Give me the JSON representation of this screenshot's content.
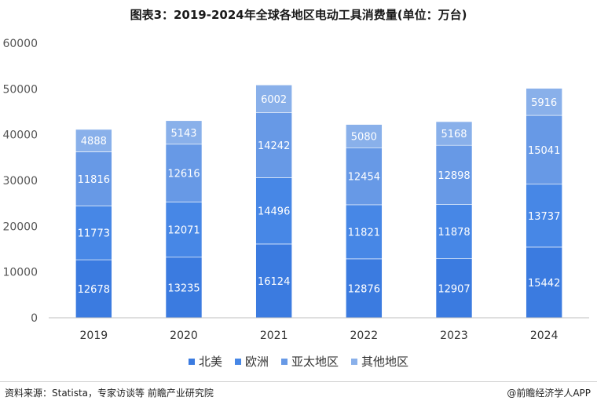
{
  "title": "图表3：2019-2024年全球各地区电动工具消费量(单位：万台)",
  "footer": {
    "source": "资料来源：Statista，专家访谈等 前瞻产业研究院",
    "brand": "@前瞻经济学人APP"
  },
  "colors": {
    "north_america": "#3b7be0",
    "europe": "#4787e6",
    "asia_pacific": "#6799e6",
    "other": "#89b0ea",
    "axis": "#bfbfbf"
  },
  "chart_data": {
    "type": "bar",
    "stacked": true,
    "categories": [
      "2019",
      "2020",
      "2021",
      "2022",
      "2023",
      "2024"
    ],
    "series": [
      {
        "name": "北美",
        "values": [
          12678,
          13235,
          16124,
          12876,
          12907,
          15442
        ]
      },
      {
        "name": "欧洲",
        "values": [
          11773,
          12071,
          14496,
          11821,
          11878,
          13737
        ]
      },
      {
        "name": "亚太地区",
        "values": [
          11816,
          12616,
          14242,
          12454,
          12898,
          15041
        ]
      },
      {
        "name": "其他地区",
        "values": [
          4888,
          5143,
          6002,
          5080,
          5168,
          5916
        ]
      }
    ],
    "y_ticks": [
      "0",
      "10000",
      "20000",
      "30000",
      "40000",
      "50000",
      "60000"
    ],
    "ylim": [
      0,
      60000
    ],
    "grid": false,
    "legend_position": "bottom"
  }
}
